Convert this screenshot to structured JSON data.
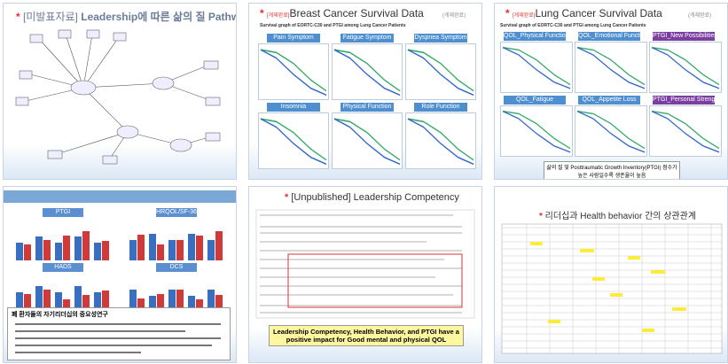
{
  "slides": [
    {
      "title_prefix": "[미발표자료]",
      "title": "Leadership에 따른 삶의 질 Pathway"
    },
    {
      "tag": "[게재완료]",
      "title": "Breast Cancer Survival Data",
      "tag_right": "(게재완료)",
      "subtitle": "Survival graph of EORTC-C30 and PTGI among Lung Cancer Patients",
      "panels": [
        "Pain Symptom",
        "Fatigue Symptom",
        "Dyspnea Symptom",
        "Insomnia",
        "Physical Function",
        "Role Function"
      ]
    },
    {
      "tag": "[게재완료]",
      "title": "Lung Cancer Survival Data",
      "tag_right": "(게재완료)",
      "subtitle": "Survival graph of EORTC-C30 and PTGI among Lung Cancer Patients",
      "panels": [
        "QOL_Physical Function",
        "QOL_Emotional Function",
        "PTGI_New Possibilities",
        "QOL_Fatigue",
        "QOL_Appetite Loss",
        "PTGI_Personal Strength"
      ],
      "note": "삶의 질 및 Posttraumatic Growth Inventory(PTGI) 점수가 높은 사람일수록 생존율이 높음"
    },
    {
      "panels": [
        "PTGI",
        "HRQOL/SF-36",
        "HADS",
        "DCS"
      ],
      "box_title": "폐 환자들의 자기리더십의 중요성연구"
    },
    {
      "title": "[Unpublished] Leadership Competency",
      "box": "Leadership Competency, Health Behavior, and PTGI have a positive impact for Good mental and physical QOL"
    },
    {
      "title": "리더십과 Health behavior 간의 상관관계"
    }
  ]
}
